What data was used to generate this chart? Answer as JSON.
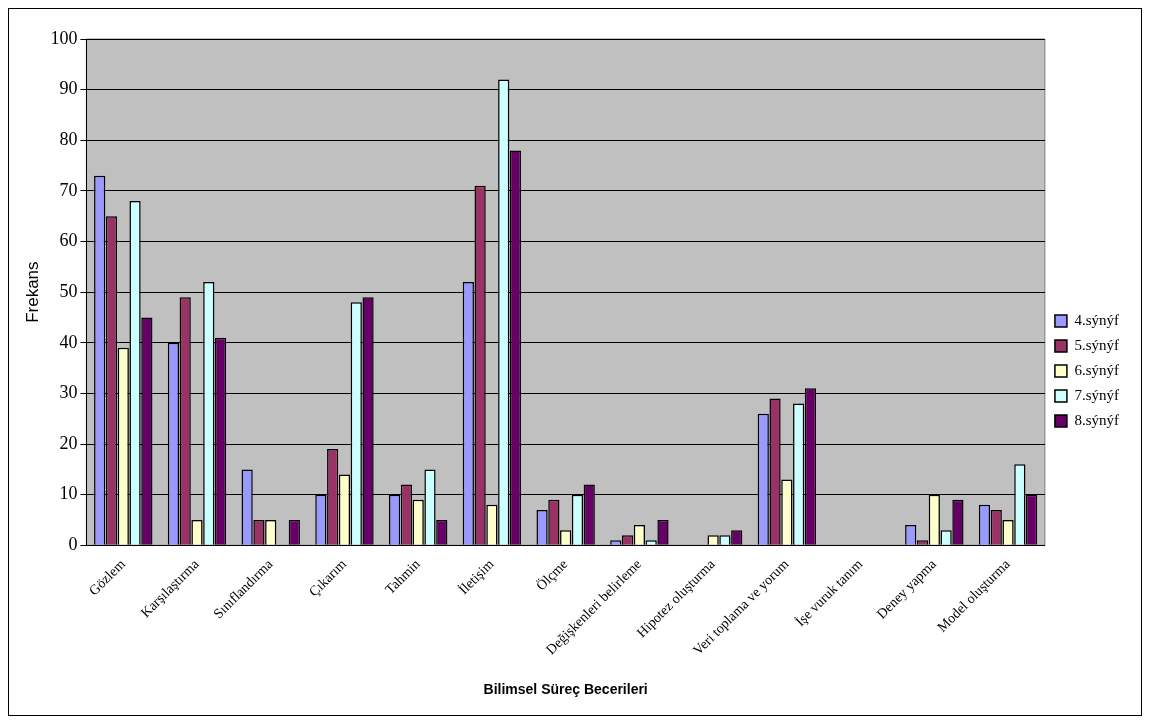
{
  "chart_data": {
    "type": "bar",
    "xlabel": "Bilimsel Süreç Becerileri",
    "ylabel": "Frekans",
    "categories": [
      "Gözlem",
      "Karşılaştırma",
      "Sınıflandırma",
      "Çıkarım",
      "Tahmin",
      "İletişim",
      "Ölçme",
      "Değişkenleri belirleme",
      "Hipotez oluşturma",
      "Veri toplama ve yorum",
      "İşe vuruk tanım",
      "Deney yapma",
      "Model oluşturma"
    ],
    "series": [
      {
        "name": "4.sýnýf",
        "color": "#9999ff",
        "values": [
          73,
          40,
          15,
          10,
          10,
          52,
          7,
          1,
          0,
          26,
          0,
          4,
          8
        ]
      },
      {
        "name": "5.sýnýf",
        "color": "#993366",
        "values": [
          65,
          49,
          5,
          19,
          12,
          71,
          9,
          2,
          0,
          29,
          0,
          1,
          7
        ]
      },
      {
        "name": "6.sýnýf",
        "color": "#ffffcc",
        "values": [
          39,
          5,
          5,
          14,
          9,
          8,
          3,
          4,
          2,
          13,
          0,
          10,
          5
        ]
      },
      {
        "name": "7.sýnýf",
        "color": "#ccffff",
        "values": [
          68,
          52,
          0,
          48,
          15,
          92,
          10,
          1,
          2,
          28,
          0,
          3,
          16
        ]
      },
      {
        "name": "8.sýnýf",
        "color": "#660066",
        "values": [
          45,
          41,
          5,
          49,
          5,
          78,
          12,
          5,
          3,
          31,
          0,
          9,
          10
        ]
      }
    ],
    "ylim": [
      0,
      100
    ],
    "yticks": [
      0,
      10,
      20,
      30,
      40,
      50,
      60,
      70,
      80,
      90,
      100
    ],
    "grid": "y",
    "legend": "right"
  }
}
